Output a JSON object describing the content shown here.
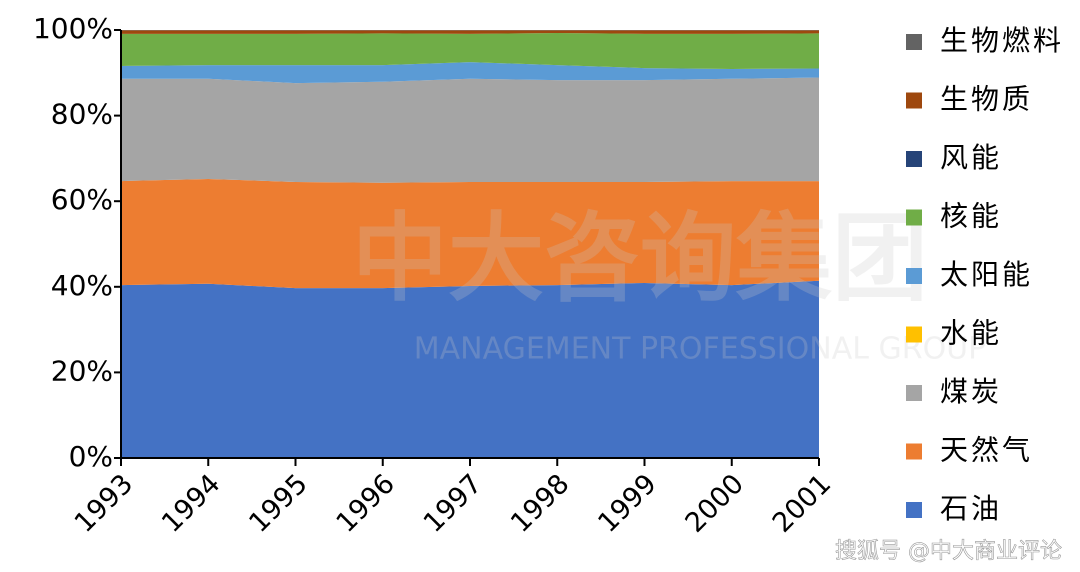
{
  "chart_data": {
    "type": "stacked_area",
    "watermark": "中大咨询集团",
    "watermark_subtitle": "MANAGEMENT PROFESSIONAL GROUP",
    "footer": "搜狐号 @中大商业评论",
    "categories": [
      "1993",
      "1994",
      "1995",
      "1996",
      "1997",
      "1998",
      "1999",
      "2000",
      "2001"
    ],
    "ylim": [
      0,
      100
    ],
    "yticks": [
      {
        "value": 0,
        "label": "0%"
      },
      {
        "value": 20,
        "label": "20%"
      },
      {
        "value": 40,
        "label": "40%"
      },
      {
        "value": 60,
        "label": "60%"
      },
      {
        "value": 80,
        "label": "80%"
      },
      {
        "value": 100,
        "label": "100%"
      }
    ],
    "legend": "right",
    "series": [
      {
        "name": "石油",
        "color": "#4472c4",
        "values": [
          40.4,
          40.7,
          39.7,
          39.7,
          40.2,
          40.4,
          40.9,
          40.4,
          41.4
        ]
      },
      {
        "name": "天然气",
        "color": "#ed7d31",
        "values": [
          24.3,
          24.5,
          24.8,
          24.6,
          24.3,
          24.1,
          23.6,
          24.3,
          23.3
        ]
      },
      {
        "name": "煤炭",
        "color": "#a5a5a5",
        "values": [
          23.9,
          23.4,
          23.1,
          23.6,
          24.1,
          23.8,
          23.8,
          23.9,
          24.2
        ]
      },
      {
        "name": "水能",
        "color": "#ffc000",
        "values": [
          0,
          0,
          0,
          0,
          0,
          0,
          0,
          0,
          0
        ]
      },
      {
        "name": "太阳能",
        "color": "#5b9bd5",
        "values": [
          3.0,
          3.2,
          4.2,
          3.9,
          3.9,
          3.5,
          2.8,
          2.3,
          2.1
        ]
      },
      {
        "name": "核能",
        "color": "#70ad47",
        "values": [
          7.5,
          7.3,
          7.3,
          7.4,
          6.6,
          7.5,
          8.0,
          8.2,
          8.2
        ]
      },
      {
        "name": "风能",
        "color": "#264478",
        "values": [
          0,
          0,
          0,
          0,
          0,
          0,
          0,
          0,
          0
        ]
      },
      {
        "name": "生物质",
        "color": "#9e480e",
        "values": [
          0.8,
          0.8,
          0.8,
          0.7,
          0.8,
          0.6,
          0.8,
          0.8,
          0.7
        ]
      },
      {
        "name": "生物燃料",
        "color": "#636363",
        "values": [
          0.1,
          0.1,
          0.1,
          0.1,
          0.1,
          0.1,
          0.1,
          0.1,
          0.1
        ]
      }
    ]
  }
}
